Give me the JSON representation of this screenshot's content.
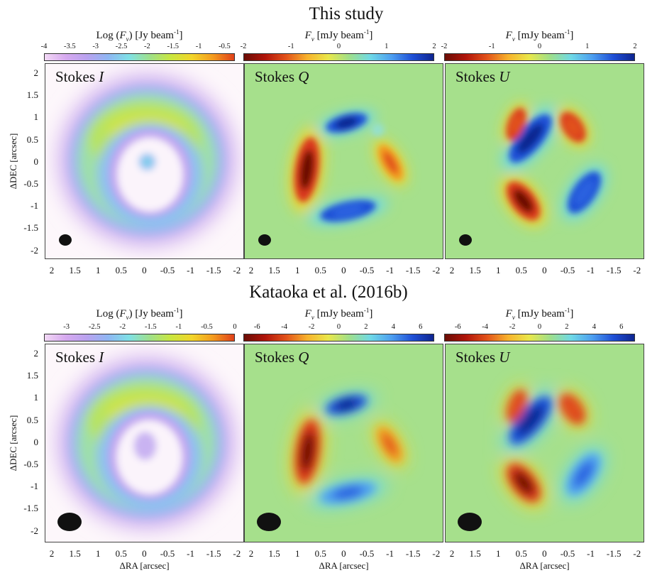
{
  "figure": {
    "top_title": "This study",
    "bottom_title": "Kataoka et al. (2016b)",
    "x_axis_label": "ΔRA [arcsec]",
    "y_axis_label": "ΔDEC [arcsec]",
    "x_ticks": [
      "2",
      "1.5",
      "1",
      "0.5",
      "0",
      "-0.5",
      "-1",
      "-1.5",
      "-2"
    ],
    "y_ticks": [
      "2",
      "1.5",
      "1",
      "0.5",
      "0",
      "-0.5",
      "-1",
      "-1.5",
      "-2"
    ]
  },
  "rows": [
    {
      "id": "this-study",
      "colorbars": [
        {
          "prefix": "Log (",
          "var": "F",
          "sub": "ν",
          "unit": ") [Jy beam",
          "sup": "-1",
          "suffix": "]",
          "ticks": [
            "-4",
            "-3.5",
            "-3",
            "-2.5",
            "-2",
            "-1.5",
            "-1",
            "-0.5"
          ],
          "range": [
            -4,
            -0.3
          ]
        },
        {
          "prefix": "",
          "var": "F",
          "sub": "ν",
          "unit": " [mJy beam",
          "sup": "-1",
          "suffix": "]",
          "ticks": [
            "-2",
            "-1",
            "0",
            "1",
            "2"
          ],
          "range": [
            -2,
            2
          ]
        },
        {
          "prefix": "",
          "var": "F",
          "sub": "ν",
          "unit": " [mJy beam",
          "sup": "-1",
          "suffix": "]",
          "ticks": [
            "-2",
            "-1",
            "0",
            "1",
            "2"
          ],
          "range": [
            -2,
            2
          ]
        }
      ],
      "panels": [
        {
          "label": "Stokes ",
          "stokes": "I"
        },
        {
          "label": "Stokes ",
          "stokes": "Q"
        },
        {
          "label": "Stokes ",
          "stokes": "U"
        }
      ]
    },
    {
      "id": "kataoka",
      "colorbars": [
        {
          "prefix": "Log (",
          "var": "F",
          "sub": "ν",
          "unit": ") [Jy beam",
          "sup": "-1",
          "suffix": "]",
          "ticks": [
            "-3",
            "-2.5",
            "-2",
            "-1.5",
            "-1",
            "-0.5",
            "0"
          ],
          "range": [
            -3.4,
            0
          ]
        },
        {
          "prefix": "",
          "var": "F",
          "sub": "ν",
          "unit": " [mJy beam",
          "sup": "-1",
          "suffix": "]",
          "ticks": [
            "-6",
            "-4",
            "-2",
            "0",
            "2",
            "4",
            "6"
          ],
          "range": [
            -7,
            7
          ]
        },
        {
          "prefix": "",
          "var": "F",
          "sub": "ν",
          "unit": " [mJy beam",
          "sup": "-1",
          "suffix": "]",
          "ticks": [
            "-6",
            "-4",
            "-2",
            "0",
            "2",
            "4",
            "6"
          ],
          "range": [
            -7,
            7
          ]
        }
      ],
      "panels": [
        {
          "label": "Stokes ",
          "stokes": "I"
        },
        {
          "label": "Stokes ",
          "stokes": "Q"
        },
        {
          "label": "Stokes ",
          "stokes": "U"
        }
      ]
    }
  ],
  "colors": {
    "map_background": "#a6e08c",
    "log_gradient": [
      "#f2d8f5",
      "#d6a9ef",
      "#b9a2ef",
      "#8fb6f3",
      "#7fe0e6",
      "#9fe08a",
      "#c9e63f",
      "#f2d52a",
      "#f39a1e",
      "#e0411a"
    ],
    "div_gradient": [
      "#6a0d05",
      "#b0140a",
      "#e2521a",
      "#f7b22c",
      "#e9e74a",
      "#9fdf8a",
      "#6fd9e6",
      "#4d9ff0",
      "#1f4fd6",
      "#0e2590"
    ],
    "beam": "#111111"
  }
}
